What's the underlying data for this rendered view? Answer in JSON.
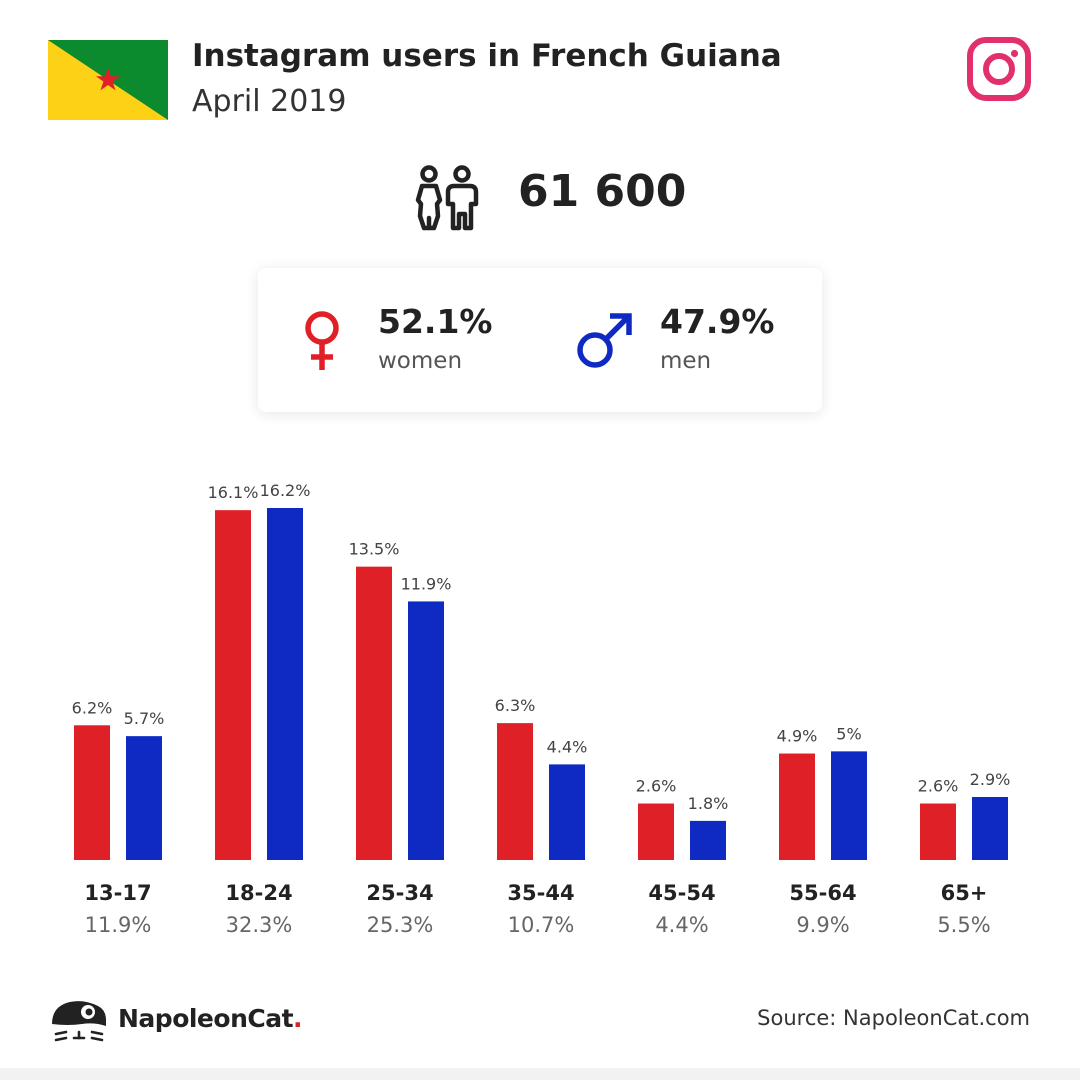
{
  "header": {
    "title": "Instagram users in French Guiana",
    "subtitle": "April 2019"
  },
  "colors": {
    "women": "#e02027",
    "men": "#0e2ac2",
    "instagram": "#e1306c"
  },
  "icons": {
    "flag": "french-guiana-flag-icon",
    "instagram": "instagram-icon",
    "people": "people-icon",
    "female": "female-icon",
    "male": "male-icon",
    "logo": "napoleoncat-logo-icon"
  },
  "summary": {
    "total": "61 600",
    "women_pct": "52.1%",
    "women_label": "women",
    "men_pct": "47.9%",
    "men_label": "men"
  },
  "chart_data": {
    "type": "bar",
    "categories": [
      "13-17",
      "18-24",
      "25-34",
      "35-44",
      "45-54",
      "55-64",
      "65+"
    ],
    "category_totals": [
      "11.9%",
      "32.3%",
      "25.3%",
      "10.7%",
      "4.4%",
      "9.9%",
      "5.5%"
    ],
    "series": [
      {
        "color": "#e02027",
        "values": [
          6.2,
          16.1,
          13.5,
          6.3,
          2.6,
          4.9,
          2.6
        ],
        "labels": [
          "6.2%",
          "16.1%",
          "13.5%",
          "6.3%",
          "2.6%",
          "4.9%",
          "2.6%"
        ]
      },
      {
        "color": "#0e2ac2",
        "values": [
          5.7,
          16.2,
          11.9,
          4.4,
          1.8,
          5,
          2.9
        ],
        "labels": [
          "5.7%",
          "16.2%",
          "11.9%",
          "4.4%",
          "1.8%",
          "5%",
          "2.9%"
        ]
      }
    ],
    "ylim": [
      0,
      16.2
    ],
    "grid": false,
    "legend": "none"
  },
  "footer": {
    "brand": "NapoleonCat",
    "brand_dot": ".",
    "source": "Source: NapoleonCat.com"
  }
}
